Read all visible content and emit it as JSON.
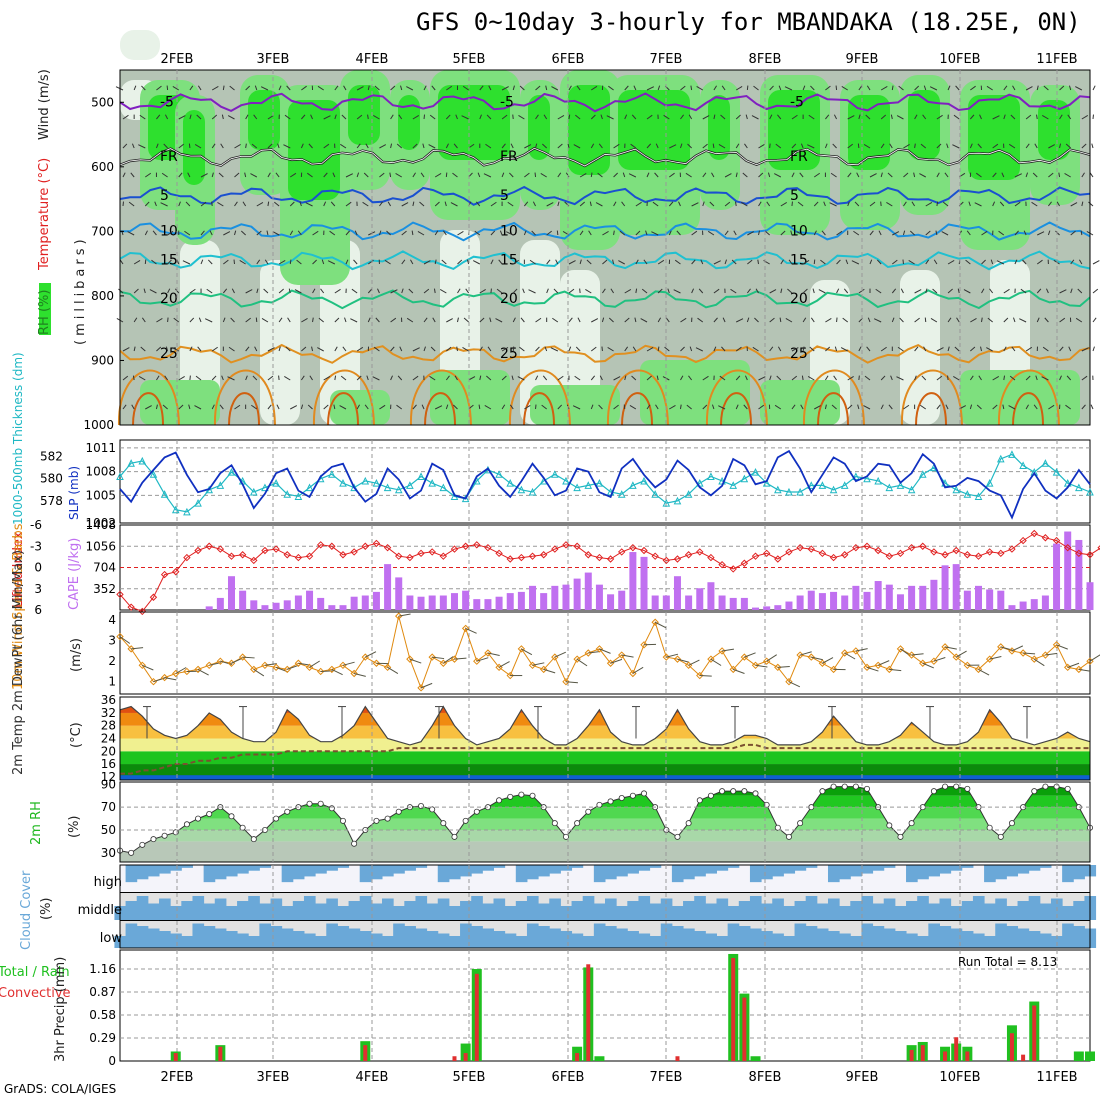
{
  "title": "GFS 0~10day 3-hourly for MBANDAKA (18.25E, 0N)",
  "credit": "GrADS: COLA/IGES",
  "date_labels": [
    "2FEB",
    "3FEB",
    "4FEB",
    "5FEB",
    "6FEB",
    "7FEB",
    "8FEB",
    "9FEB",
    "10FEB",
    "11FEB"
  ],
  "colors": {
    "rh_light": "#e8f2e8",
    "rh_mid": "#cfdccf",
    "rh_gray": "#b5c4b5",
    "rh_green1": "#7ee07e",
    "rh_green2": "#2ee02e",
    "rh_green3": "#16b016",
    "thickness": "#1fb8c4",
    "slp": "#1030c0",
    "cape": "#c070f0",
    "lifted": "#e02020",
    "wind10": "#e08a10",
    "rh2m": "#20b820",
    "cloud": "#6aa8d8",
    "cloud_bg": "#e2e2e2",
    "precip_total": "#20c020",
    "precip_conv": "#e03030"
  },
  "panels": {
    "upper_air": {
      "ylabel_rh": "RH (%)",
      "ylabel_temp": "Temperature (°C)",
      "ylabel_wind": "Wind (m/s)",
      "ylabel_pressure": "(millibars)",
      "yticks": [
        500,
        600,
        700,
        800,
        900,
        1000
      ],
      "temp_contours": [
        {
          "value": "-5",
          "level": 500,
          "color": "#8020c0"
        },
        {
          "value": "FR",
          "level": 585,
          "color": "#222222"
        },
        {
          "value": "5",
          "level": 645,
          "color": "#1a50d0"
        },
        {
          "value": "10",
          "level": 700,
          "color": "#1a90e0"
        },
        {
          "value": "15",
          "level": 745,
          "color": "#20c0d0"
        },
        {
          "value": "20",
          "level": 805,
          "color": "#20c080"
        },
        {
          "value": "25",
          "level": 890,
          "color": "#e09020"
        }
      ]
    },
    "thickness_slp": {
      "ylabel_left": "1000-500mb Thickness (dm)",
      "ylabel_right": "SLP (mb)",
      "yticks_left": [
        578,
        580,
        582
      ],
      "yticks_right": [
        1005,
        1008,
        1011
      ],
      "ytick_bottom_right": 1002
    },
    "cape_li": {
      "ylabel_left": "Lifted Index",
      "ylabel_right": "CAPE (J/kg)",
      "yticks_left": [
        "-6",
        "-3",
        "0",
        "3",
        "6"
      ],
      "yticks_right": [
        352,
        704,
        1056,
        1408
      ]
    },
    "wind10": {
      "ylabel": "10m Wind Speed & Barbs",
      "unit": "(m/s)",
      "yticks": [
        1,
        2,
        3,
        4
      ]
    },
    "temp2m": {
      "ylabel": "2m Temp 2m DewPt (6hr Min/Max)",
      "unit": "(°C)",
      "yticks": [
        12,
        16,
        20,
        24,
        28,
        32,
        36
      ]
    },
    "rh2m": {
      "ylabel": "2m RH",
      "unit": "(%)",
      "yticks": [
        30,
        50,
        70,
        90
      ]
    },
    "cloud": {
      "ylabel": "Cloud Cover",
      "unit": "(%)",
      "levels": [
        "high",
        "middle",
        "low"
      ]
    },
    "precip": {
      "ylabel": "3hr Precip (mm)",
      "legend_total": "Total / Rain",
      "legend_conv": "Convective",
      "run_total": "Run Total = 8.13",
      "yticks": [
        "0",
        "0.29",
        "0.58",
        "0.87",
        "1.16"
      ]
    }
  },
  "chart_data": [
    {
      "type": "line",
      "name": "thickness_slp",
      "x_unit": "3-hourly step",
      "series": [
        {
          "name": "1000-500mb Thickness (dm)",
          "values": [
            580.2,
            581.4,
            581.6,
            580.4,
            578.6,
            577.2,
            577.0,
            577.8,
            579.0,
            579.4,
            580.6,
            579.8,
            578.8,
            579.2,
            579.6,
            578.6,
            578.4,
            579.2,
            580.0,
            580.4,
            579.6,
            579.2,
            579.8,
            579.6,
            579.2,
            579.0,
            579.4,
            580.2,
            579.6,
            579.2,
            578.4,
            578.2,
            579.8,
            580.8,
            580.4,
            579.6,
            579.0,
            578.8,
            579.8,
            580.4,
            579.8,
            579.2,
            579.4,
            579.6,
            578.8,
            578.6,
            579.4,
            579.8,
            578.6,
            577.8,
            578.0,
            578.6,
            579.6,
            580.2,
            579.8,
            579.4,
            580.0,
            580.6,
            579.6,
            579.0,
            578.8,
            578.8,
            579.4,
            579.4,
            579.0,
            579.4,
            580.2,
            580.0,
            579.8,
            579.2,
            579.4,
            579.0,
            580.4,
            581.0,
            579.6,
            579.0,
            578.6,
            578.4,
            579.6,
            581.8,
            582.2,
            581.2,
            580.6,
            581.4,
            580.6,
            579.6,
            579.2,
            578.8
          ]
        },
        {
          "name": "SLP (mb)",
          "values": [
            1005.8,
            1004.2,
            1006.6,
            1008.2,
            1009.8,
            1010.4,
            1007.6,
            1005.4,
            1005.8,
            1007.8,
            1008.8,
            1006.4,
            1003.4,
            1005.2,
            1007.8,
            1008.4,
            1005.6,
            1004.8,
            1007.4,
            1008.6,
            1009.0,
            1006.0,
            1004.2,
            1005.2,
            1008.4,
            1007.0,
            1004.6,
            1005.6,
            1009.0,
            1008.2,
            1005.0,
            1004.6,
            1007.4,
            1008.4,
            1006.2,
            1004.8,
            1006.8,
            1009.0,
            1007.2,
            1005.0,
            1005.6,
            1008.4,
            1008.0,
            1005.4,
            1004.8,
            1008.4,
            1009.6,
            1007.6,
            1006.0,
            1007.0,
            1009.4,
            1008.2,
            1006.0,
            1005.0,
            1006.2,
            1009.6,
            1008.8,
            1006.4,
            1006.8,
            1009.8,
            1010.6,
            1008.4,
            1005.4,
            1007.6,
            1009.8,
            1009.0,
            1006.8,
            1007.4,
            1009.0,
            1008.8,
            1006.6,
            1007.8,
            1010.2,
            1009.0,
            1006.0,
            1006.2,
            1007.2,
            1006.8,
            1005.6,
            1005.0,
            1002.2,
            1005.8,
            1007.8,
            1005.6,
            1004.6,
            1006.0,
            1008.2,
            1006.4
          ]
        }
      ]
    },
    {
      "type": "bar",
      "name": "cape_lifted_index",
      "series": [
        {
          "name": "CAPE (J/kg)",
          "values": [
            0,
            0,
            0,
            0,
            0,
            0,
            0,
            0,
            60,
            200,
            560,
            320,
            160,
            80,
            120,
            160,
            240,
            320,
            200,
            80,
            80,
            220,
            240,
            300,
            760,
            540,
            240,
            220,
            240,
            240,
            280,
            320,
            180,
            180,
            220,
            280,
            300,
            400,
            280,
            400,
            420,
            520,
            620,
            420,
            260,
            320,
            960,
            880,
            240,
            240,
            560,
            240,
            360,
            460,
            240,
            200,
            200,
            40,
            60,
            80,
            140,
            240,
            320,
            280,
            300,
            240,
            400,
            300,
            480,
            420,
            260,
            400,
            400,
            500,
            740,
            760,
            320,
            400,
            340,
            320,
            80,
            140,
            180,
            240,
            1100,
            1300,
            1160,
            460
          ]
        },
        {
          "name": "Lifted Index",
          "values": [
            3.8,
            5.6,
            6.2,
            4.2,
            1.0,
            0.6,
            -1.4,
            -2.4,
            -3.0,
            -2.6,
            -1.6,
            -1.8,
            -1.0,
            -2.4,
            -2.6,
            -1.8,
            -1.4,
            -1.6,
            -3.2,
            -3.0,
            -1.8,
            -2.2,
            -3.0,
            -3.4,
            -2.8,
            -1.6,
            -1.4,
            -2.0,
            -2.2,
            -1.6,
            -2.6,
            -3.0,
            -3.2,
            -2.8,
            -2.0,
            -1.2,
            -1.4,
            -1.6,
            -1.8,
            -2.6,
            -3.2,
            -3.0,
            -1.8,
            -1.4,
            -1.2,
            -2.2,
            -2.8,
            -2.4,
            -1.6,
            -1.0,
            -1.2,
            -1.8,
            -2.2,
            -1.4,
            -0.4,
            0.2,
            -0.6,
            -1.6,
            -2.0,
            -1.2,
            -2.2,
            -2.8,
            -2.6,
            -2.0,
            -1.4,
            -1.8,
            -2.8,
            -3.0,
            -2.4,
            -1.6,
            -2.0,
            -2.8,
            -3.0,
            -2.2,
            -1.8,
            -2.4,
            -1.8,
            -1.6,
            -2.2,
            -2.0,
            -2.6,
            -3.8,
            -4.8,
            -4.2,
            -3.8,
            -2.8,
            -2.0,
            -1.8,
            -2.8,
            -2.2
          ]
        }
      ]
    },
    {
      "type": "line",
      "name": "wind_10m",
      "series": [
        {
          "name": "10m Wind Speed (m/s)",
          "values": [
            3.2,
            2.6,
            1.8,
            1.0,
            1.2,
            1.4,
            1.5,
            1.6,
            1.8,
            2.0,
            1.9,
            2.2,
            1.6,
            1.8,
            1.7,
            1.6,
            1.9,
            1.7,
            1.5,
            1.6,
            1.8,
            1.4,
            2.2,
            1.9,
            1.7,
            4.2,
            2.1,
            0.7,
            2.2,
            1.9,
            2.1,
            3.6,
            2.0,
            2.4,
            1.7,
            1.3,
            2.6,
            1.8,
            1.6,
            2.2,
            1.0,
            2.1,
            2.4,
            2.6,
            1.9,
            2.3,
            1.4,
            2.8,
            3.9,
            2.2,
            2.1,
            1.8,
            1.3,
            2.1,
            2.5,
            1.6,
            2.2,
            1.8,
            2.0,
            1.7,
            1.0,
            2.3,
            2.2,
            1.9,
            1.6,
            2.4,
            2.5,
            1.7,
            1.8,
            1.6,
            2.6,
            2.3,
            1.9,
            2.0,
            2.7,
            2.2,
            1.8,
            1.6,
            2.1,
            2.7,
            2.5,
            2.4,
            2.1,
            2.3,
            2.8,
            1.7,
            1.6,
            2.0
          ]
        }
      ]
    },
    {
      "type": "area",
      "name": "temp_2m",
      "series": [
        {
          "name": "2m Temp (°C)",
          "values": [
            33,
            34,
            31,
            27,
            25,
            24,
            25,
            28,
            32,
            30,
            26,
            24,
            23,
            23,
            26,
            33,
            30,
            25,
            23,
            23,
            25,
            28,
            34,
            29,
            24,
            23,
            22,
            23,
            28,
            34,
            28,
            24,
            22,
            23,
            24,
            27,
            33,
            28,
            24,
            22,
            22,
            24,
            28,
            33,
            26,
            23,
            22,
            22,
            24,
            27,
            33,
            27,
            23,
            22,
            22,
            23,
            25,
            25,
            24,
            22,
            22,
            22,
            23,
            26,
            31,
            27,
            23,
            22,
            22,
            23,
            25,
            29,
            26,
            23,
            22,
            22,
            23,
            26,
            33,
            29,
            24,
            23,
            22,
            23,
            24,
            26,
            24,
            23
          ]
        },
        {
          "name": "2m DewPt (°C)",
          "values": [
            13,
            13,
            14,
            14,
            15,
            16,
            16,
            17,
            17,
            18,
            18,
            19,
            19,
            19,
            19,
            20,
            20,
            20,
            20,
            20,
            20,
            20,
            20,
            20,
            20,
            21,
            21,
            21,
            21,
            21,
            21,
            21,
            21,
            21,
            21,
            21,
            21,
            21,
            21,
            21,
            21,
            21,
            21,
            21,
            21,
            21,
            21,
            21,
            21,
            21,
            21,
            21,
            21,
            21,
            21,
            21,
            22,
            22,
            21,
            21,
            21,
            21,
            21,
            21,
            21,
            21,
            21,
            21,
            21,
            21,
            21,
            21,
            21,
            21,
            21,
            21,
            21,
            21,
            21,
            21,
            21,
            21,
            21,
            21,
            21,
            21,
            21,
            21
          ]
        }
      ]
    },
    {
      "type": "area",
      "name": "rh_2m",
      "series": [
        {
          "name": "2m RH (%)",
          "values": [
            32,
            30,
            37,
            42,
            45,
            48,
            55,
            60,
            64,
            70,
            62,
            52,
            42,
            50,
            60,
            66,
            70,
            73,
            73,
            69,
            58,
            38,
            50,
            58,
            60,
            66,
            70,
            71,
            68,
            56,
            44,
            58,
            66,
            70,
            76,
            79,
            81,
            80,
            70,
            56,
            44,
            56,
            66,
            72,
            75,
            78,
            80,
            82,
            70,
            50,
            44,
            56,
            76,
            80,
            84,
            84,
            84,
            82,
            72,
            52,
            44,
            56,
            70,
            84,
            88,
            88,
            88,
            86,
            70,
            54,
            44,
            56,
            70,
            84,
            88,
            88,
            86,
            70,
            52,
            44,
            56,
            70,
            84,
            88,
            88,
            86,
            70,
            52
          ]
        }
      ]
    },
    {
      "type": "bar",
      "name": "precip_3hr",
      "series": [
        {
          "name": "Total / Rain (mm)",
          "values": [
            0,
            0,
            0,
            0,
            0,
            0.12,
            0,
            0,
            0,
            0.2,
            0,
            0,
            0,
            0,
            0,
            0,
            0,
            0,
            0,
            0,
            0,
            0,
            0.25,
            0,
            0,
            0,
            0,
            0,
            0,
            0,
            0,
            0.22,
            1.16,
            0,
            0,
            0,
            0,
            0,
            0,
            0,
            0,
            0.18,
            1.18,
            0.06,
            0,
            0,
            0,
            0,
            0,
            0,
            0,
            0,
            0,
            0,
            0,
            1.35,
            0.85,
            0.06,
            0,
            0,
            0,
            0,
            0,
            0,
            0,
            0,
            0,
            0,
            0,
            0,
            0,
            0.2,
            0.24,
            0,
            0.18,
            0.22,
            0.18,
            0,
            0,
            0,
            0.45,
            0,
            0.75,
            0,
            0,
            0,
            0.12,
            0.12
          ]
        },
        {
          "name": "Convective (mm)",
          "values": [
            0,
            0,
            0,
            0,
            0,
            0.1,
            0,
            0,
            0,
            0.18,
            0,
            0,
            0,
            0,
            0,
            0,
            0,
            0,
            0,
            0,
            0,
            0,
            0.2,
            0,
            0,
            0,
            0,
            0,
            0,
            0,
            0.06,
            0.1,
            1.1,
            0,
            0,
            0,
            0,
            0,
            0,
            0,
            0,
            0.1,
            1.22,
            0,
            0,
            0,
            0,
            0,
            0,
            0,
            0.06,
            0,
            0,
            0,
            0,
            1.3,
            0.8,
            0,
            0,
            0,
            0,
            0,
            0,
            0,
            0,
            0,
            0,
            0,
            0,
            0,
            0,
            0.14,
            0.2,
            0,
            0.12,
            0.3,
            0.12,
            0,
            0,
            0,
            0.35,
            0.08,
            0.7,
            0,
            0,
            0,
            0,
            0
          ]
        }
      ]
    }
  ]
}
